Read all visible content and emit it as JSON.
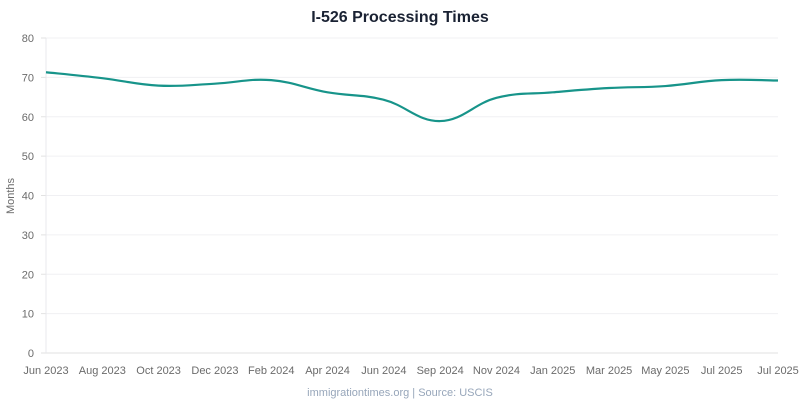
{
  "chart_data": {
    "type": "line",
    "title": "I-526 Processing Times",
    "xlabel": "",
    "ylabel": "Months",
    "ylim": [
      0,
      80
    ],
    "yticks": [
      0,
      10,
      20,
      30,
      40,
      50,
      60,
      70,
      80
    ],
    "grid": true,
    "legend": "none",
    "categories": [
      "Jun 2023",
      "Aug 2023",
      "Oct 2023",
      "Dec 2023",
      "Feb 2024",
      "Apr 2024",
      "Jun 2024",
      "Sep 2024",
      "Nov 2024",
      "Jan 2025",
      "Mar 2025",
      "May 2025",
      "Jul 2025",
      "Jul 2025"
    ],
    "series": [
      {
        "name": "I-526 Processing Time",
        "color": "#17948a",
        "values": [
          71.3,
          69.8,
          67.9,
          68.4,
          69.3,
          66.2,
          64.3,
          58.9,
          64.8,
          66.2,
          67.3,
          67.8,
          69.3,
          69.2
        ]
      }
    ]
  },
  "footer": "immigrationtimes.org | Source: USCIS"
}
